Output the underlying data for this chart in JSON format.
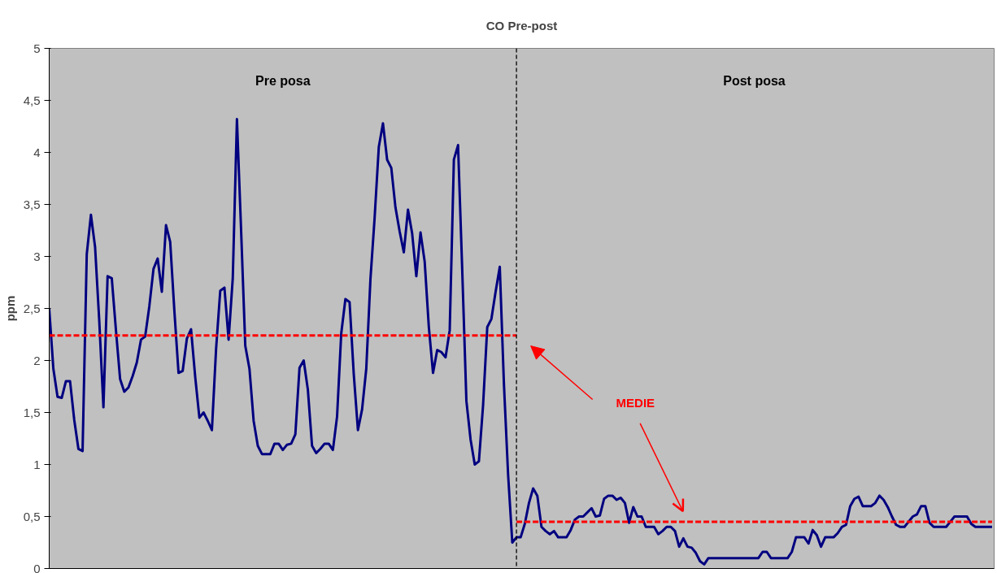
{
  "chart_data": {
    "type": "line",
    "title": "CO Pre-post",
    "ylabel": "ppm",
    "annotations": [
      "Pre posa",
      "Post posa",
      "MEDIE"
    ],
    "ylim": [
      0,
      5
    ],
    "yticks": [
      {
        "value": 0,
        "label": "0"
      },
      {
        "value": 0.5,
        "label": "0,5"
      },
      {
        "value": 1,
        "label": "1"
      },
      {
        "value": 1.5,
        "label": "1,5"
      },
      {
        "value": 2,
        "label": "2"
      },
      {
        "value": 2.5,
        "label": "2,5"
      },
      {
        "value": 3,
        "label": "3"
      },
      {
        "value": 3.5,
        "label": "3,5"
      },
      {
        "value": 4,
        "label": "4"
      },
      {
        "value": 4.5,
        "label": "4,5"
      },
      {
        "value": 5,
        "label": "5"
      }
    ],
    "tick_labels": "y",
    "line_style": "solid",
    "categories": [
      null,
      null,
      null,
      null,
      null,
      null,
      null,
      null,
      null,
      null,
      null,
      null,
      null,
      null,
      null,
      null,
      null,
      null,
      null,
      null,
      null,
      null,
      null,
      null,
      null,
      null,
      null,
      null,
      null,
      null,
      null,
      null,
      null,
      null,
      null,
      null,
      null,
      null,
      null,
      null,
      null,
      null,
      null,
      null,
      null,
      null,
      null,
      null,
      null,
      null,
      null,
      null,
      null,
      null,
      null,
      null,
      null,
      null,
      null,
      null,
      null,
      null,
      null,
      null,
      null,
      null,
      null,
      null,
      null,
      null,
      null,
      null,
      null,
      null,
      null,
      null,
      null,
      null,
      null,
      null,
      null,
      null,
      null,
      null,
      null,
      null,
      null,
      null,
      null,
      null,
      null,
      null,
      null,
      null,
      null,
      null,
      null,
      null,
      null,
      null,
      null,
      null,
      null,
      null,
      null,
      null,
      null,
      null,
      null,
      null,
      null,
      null,
      null,
      null,
      null,
      null,
      null,
      null,
      null,
      null,
      null,
      null,
      null,
      null,
      null,
      null,
      null,
      null,
      null,
      null,
      null,
      null,
      null,
      null,
      null,
      null,
      null,
      null,
      null,
      null,
      null,
      null,
      null,
      null,
      null,
      null,
      null,
      null,
      null,
      null,
      null,
      null,
      null,
      null,
      null,
      null,
      null,
      null,
      null,
      null,
      null,
      null,
      null,
      null,
      null,
      null,
      null,
      null,
      null,
      null,
      null,
      null,
      null,
      null,
      null,
      null,
      null,
      null,
      null,
      null,
      null,
      null,
      null,
      null,
      null,
      null,
      null,
      null,
      null,
      null,
      null,
      null,
      null,
      null,
      null,
      null,
      null,
      null,
      null,
      null,
      null,
      null,
      null,
      null,
      null,
      null,
      null,
      null,
      null,
      null,
      null,
      null,
      null,
      null,
      null,
      null,
      null,
      null,
      null,
      null,
      null,
      null,
      null,
      null,
      null,
      null,
      null
    ],
    "series": [
      {
        "color": "#000080",
        "values": [
          2.5,
          1.92,
          1.65,
          1.64,
          1.8,
          1.8,
          1.43,
          1.15,
          1.13,
          3.02,
          3.4,
          3.09,
          2.38,
          1.55,
          2.81,
          2.79,
          2.29,
          1.82,
          1.7,
          1.74,
          1.85,
          1.98,
          2.2,
          2.23,
          2.52,
          2.88,
          2.98,
          2.66,
          3.3,
          3.14,
          2.48,
          1.88,
          1.9,
          2.21,
          2.3,
          1.84,
          1.45,
          1.5,
          1.42,
          1.33,
          2.11,
          2.67,
          2.7,
          2.2,
          2.79,
          4.32,
          3.25,
          2.14,
          1.92,
          1.42,
          1.18,
          1.1,
          1.1,
          1.1,
          1.2,
          1.2,
          1.14,
          1.19,
          1.2,
          1.29,
          1.93,
          2.0,
          1.72,
          1.18,
          1.11,
          1.15,
          1.2,
          1.2,
          1.14,
          1.46,
          2.26,
          2.59,
          2.56,
          1.87,
          1.33,
          1.53,
          1.92,
          2.78,
          3.37,
          4.05,
          4.28,
          3.93,
          3.85,
          3.47,
          3.24,
          3.04,
          3.45,
          3.22,
          2.81,
          3.23,
          2.95,
          2.32,
          1.88,
          2.1,
          2.08,
          2.03,
          2.29,
          3.93,
          4.07,
          2.87,
          1.61,
          1.24,
          1.0,
          1.03,
          1.57,
          2.32,
          2.4,
          2.66,
          2.9,
          1.77,
          0.9,
          0.25,
          0.3,
          0.3,
          0.43,
          0.63,
          0.77,
          0.7,
          0.4,
          0.36,
          0.33,
          0.36,
          0.3,
          0.3,
          0.3,
          0.37,
          0.47,
          0.5,
          0.5,
          0.54,
          0.58,
          0.5,
          0.51,
          0.67,
          0.7,
          0.7,
          0.66,
          0.68,
          0.63,
          0.44,
          0.59,
          0.5,
          0.5,
          0.4,
          0.4,
          0.4,
          0.33,
          0.36,
          0.4,
          0.4,
          0.36,
          0.21,
          0.29,
          0.21,
          0.2,
          0.15,
          0.07,
          0.04,
          0.1,
          0.1,
          0.1,
          0.1,
          0.1,
          0.1,
          0.1,
          0.1,
          0.1,
          0.1,
          0.1,
          0.1,
          0.1,
          0.16,
          0.16,
          0.1,
          0.1,
          0.1,
          0.1,
          0.1,
          0.16,
          0.3,
          0.3,
          0.3,
          0.24,
          0.37,
          0.32,
          0.21,
          0.3,
          0.3,
          0.3,
          0.34,
          0.4,
          0.42,
          0.6,
          0.67,
          0.69,
          0.6,
          0.6,
          0.6,
          0.63,
          0.7,
          0.66,
          0.59,
          0.5,
          0.42,
          0.4,
          0.4,
          0.45,
          0.5,
          0.52,
          0.6,
          0.6,
          0.44,
          0.4,
          0.4,
          0.4,
          0.4,
          0.45,
          0.5,
          0.5,
          0.5,
          0.5,
          0.43,
          0.4,
          0.4,
          0.4,
          0.4,
          0.4
        ]
      },
      {
        "color": "#ff0000",
        "line_style": "dashed",
        "values": [
          2.24,
          2.24,
          2.24,
          2.24,
          2.24,
          2.24,
          2.24,
          2.24,
          2.24,
          2.24,
          2.24,
          2.24,
          2.24,
          2.24,
          2.24,
          2.24,
          2.24,
          2.24,
          2.24,
          2.24,
          2.24,
          2.24,
          2.24,
          2.24,
          2.24,
          2.24,
          2.24,
          2.24,
          2.24,
          2.24,
          2.24,
          2.24,
          2.24,
          2.24,
          2.24,
          2.24,
          2.24,
          2.24,
          2.24,
          2.24,
          2.24,
          2.24,
          2.24,
          2.24,
          2.24,
          2.24,
          2.24,
          2.24,
          2.24,
          2.24,
          2.24,
          2.24,
          2.24,
          2.24,
          2.24,
          2.24,
          2.24,
          2.24,
          2.24,
          2.24,
          2.24,
          2.24,
          2.24,
          2.24,
          2.24,
          2.24,
          2.24,
          2.24,
          2.24,
          2.24,
          2.24,
          2.24,
          2.24,
          2.24,
          2.24,
          2.24,
          2.24,
          2.24,
          2.24,
          2.24,
          2.24,
          2.24,
          2.24,
          2.24,
          2.24,
          2.24,
          2.24,
          2.24,
          2.24,
          2.24,
          2.24,
          2.24,
          2.24,
          2.24,
          2.24,
          2.24,
          2.24,
          2.24,
          2.24,
          2.24,
          2.24,
          2.24,
          2.24,
          2.24,
          2.24,
          2.24,
          2.24,
          2.24,
          2.24,
          2.24,
          2.24,
          2.24,
          2.24,
          null,
          null,
          null,
          null,
          null,
          null,
          null,
          null,
          null,
          null,
          null,
          null,
          null,
          null,
          null,
          null,
          null,
          null,
          null,
          null,
          null,
          null,
          null,
          null,
          null,
          null,
          null,
          null,
          null,
          null,
          null,
          null,
          null,
          null,
          null,
          null,
          null,
          null,
          null,
          null,
          null,
          null,
          null,
          null,
          null,
          null,
          null,
          null,
          null,
          null,
          null,
          null,
          null,
          null,
          null,
          null,
          null,
          null,
          null,
          null,
          null,
          null,
          null,
          null,
          null,
          null,
          null,
          null,
          null,
          null,
          null,
          null,
          null,
          null,
          null,
          null,
          null,
          null,
          null,
          null,
          null,
          null,
          null,
          null,
          null,
          null,
          null,
          null,
          null,
          null,
          null,
          null,
          null,
          null,
          null,
          null,
          null,
          null,
          null,
          null,
          null,
          null,
          null,
          null,
          null,
          null,
          null,
          null,
          null,
          null,
          null,
          null,
          null,
          null
        ]
      },
      {
        "color": "#ff0000",
        "line_style": "dashed",
        "values": [
          null,
          null,
          null,
          null,
          null,
          null,
          null,
          null,
          null,
          null,
          null,
          null,
          null,
          null,
          null,
          null,
          null,
          null,
          null,
          null,
          null,
          null,
          null,
          null,
          null,
          null,
          null,
          null,
          null,
          null,
          null,
          null,
          null,
          null,
          null,
          null,
          null,
          null,
          null,
          null,
          null,
          null,
          null,
          null,
          null,
          null,
          null,
          null,
          null,
          null,
          null,
          null,
          null,
          null,
          null,
          null,
          null,
          null,
          null,
          null,
          null,
          null,
          null,
          null,
          null,
          null,
          null,
          null,
          null,
          null,
          null,
          null,
          null,
          null,
          null,
          null,
          null,
          null,
          null,
          null,
          null,
          null,
          null,
          null,
          null,
          null,
          null,
          null,
          null,
          null,
          null,
          null,
          null,
          null,
          null,
          null,
          null,
          null,
          null,
          null,
          null,
          null,
          null,
          null,
          null,
          null,
          null,
          null,
          null,
          null,
          null,
          null,
          0.45,
          0.45,
          0.45,
          0.45,
          0.45,
          0.45,
          0.45,
          0.45,
          0.45,
          0.45,
          0.45,
          0.45,
          0.45,
          0.45,
          0.45,
          0.45,
          0.45,
          0.45,
          0.45,
          0.45,
          0.45,
          0.45,
          0.45,
          0.45,
          0.45,
          0.45,
          0.45,
          0.45,
          0.45,
          0.45,
          0.45,
          0.45,
          0.45,
          0.45,
          0.45,
          0.45,
          0.45,
          0.45,
          0.45,
          0.45,
          0.45,
          0.45,
          0.45,
          0.45,
          0.45,
          0.45,
          0.45,
          0.45,
          0.45,
          0.45,
          0.45,
          0.45,
          0.45,
          0.45,
          0.45,
          0.45,
          0.45,
          0.45,
          0.45,
          0.45,
          0.45,
          0.45,
          0.45,
          0.45,
          0.45,
          0.45,
          0.45,
          0.45,
          0.45,
          0.45,
          0.45,
          0.45,
          0.45,
          0.45,
          0.45,
          0.45,
          0.45,
          0.45,
          0.45,
          0.45,
          0.45,
          0.45,
          0.45,
          0.45,
          0.45,
          0.45,
          0.45,
          0.45,
          0.45,
          0.45,
          0.45,
          0.45,
          0.45,
          0.45,
          0.45,
          0.45,
          0.45,
          0.45,
          0.45,
          0.45,
          0.45,
          0.45,
          0.45,
          0.45,
          0.45,
          0.45,
          0.45,
          0.45,
          0.45,
          0.45,
          0.45,
          0.45,
          0.45,
          0.45,
          0.45
        ]
      }
    ]
  }
}
